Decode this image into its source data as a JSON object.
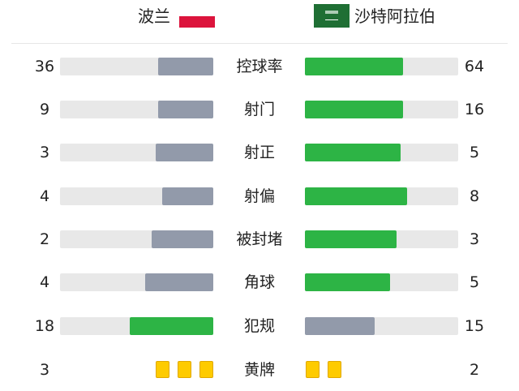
{
  "home": {
    "name": "波兰",
    "flag": "poland-flag",
    "flag_colors": [
      "#ffffff",
      "#dc143c"
    ]
  },
  "away": {
    "name": "沙特阿拉伯",
    "flag": "saudi-arabia-flag",
    "flag_color": "#1f6f34"
  },
  "colors": {
    "leader": "#2db445",
    "other": "#929aaa",
    "track": "#e8e8e8",
    "yellow_card": "#fecb00"
  },
  "stats": [
    {
      "label": "控球率",
      "home": 36,
      "away": 64
    },
    {
      "label": "射门",
      "home": 9,
      "away": 16
    },
    {
      "label": "射正",
      "home": 3,
      "away": 5
    },
    {
      "label": "射偏",
      "home": 4,
      "away": 8
    },
    {
      "label": "被封堵",
      "home": 2,
      "away": 3
    },
    {
      "label": "角球",
      "home": 4,
      "away": 5
    },
    {
      "label": "犯规",
      "home": 18,
      "away": 15
    }
  ],
  "yellow_cards": {
    "label": "黄牌",
    "home": 3,
    "away": 2
  }
}
